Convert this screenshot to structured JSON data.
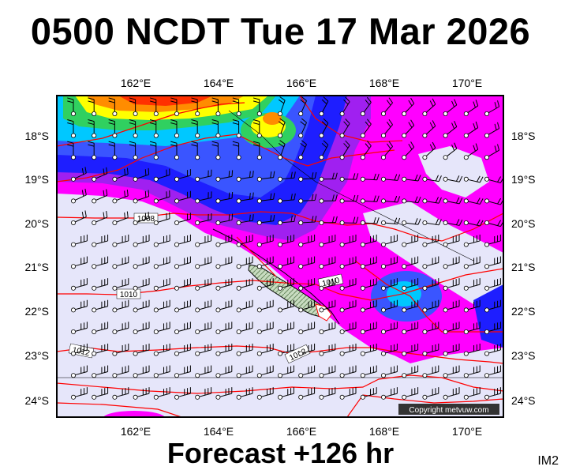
{
  "title": "0500 NCDT Tue 17 Mar 2026",
  "forecast_label": "Forecast +126 hr",
  "product_code": "IM2",
  "copyright": "Copyright metvuw.com",
  "longitude_ticks": [
    "162°E",
    "164°E",
    "166°E",
    "168°E",
    "170°E"
  ],
  "latitude_ticks": [
    "18°S",
    "19°S",
    "20°S",
    "21°S",
    "22°S",
    "23°S",
    "24°S"
  ],
  "isobar_labels": [
    "1008",
    "1010",
    "1010",
    "1012",
    "1012"
  ],
  "colors": {
    "calm_fill": "#e6e6fa",
    "magenta": "#ff00ff",
    "violet": "#a020f0",
    "blue": "#1e3cff",
    "mid_blue": "#3a55ff",
    "cyan": "#00e0ff",
    "green": "#30d060",
    "yellow": "#ffff00",
    "orange": "#ff8c00",
    "red": "#ff3000",
    "isobar": "#ff0000",
    "land": "#a8c8a0"
  }
}
